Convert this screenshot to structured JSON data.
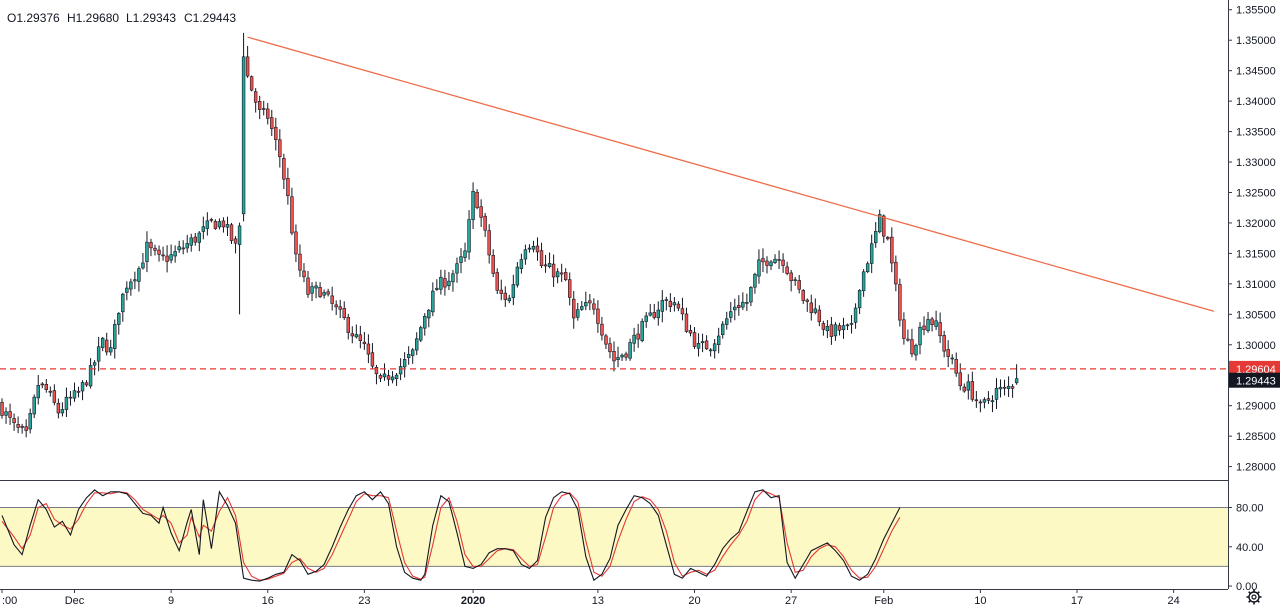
{
  "ohlc_header": {
    "open": "O1.29376",
    "high": "H1.29680",
    "low": "L1.29343",
    "close": "C1.29443"
  },
  "price_axis_labels": [
    "1.35500",
    "1.35000",
    "1.34500",
    "1.34000",
    "1.33500",
    "1.33000",
    "1.32500",
    "1.32000",
    "1.31500",
    "1.31000",
    "1.30500",
    "1.30000",
    "1.29500",
    "1.29000",
    "1.28500",
    "1.28000"
  ],
  "price_axis_values": [
    1.355,
    1.35,
    1.345,
    1.34,
    1.335,
    1.33,
    1.325,
    1.32,
    1.315,
    1.31,
    1.305,
    1.3,
    1.295,
    1.29,
    1.285,
    1.28
  ],
  "price_range": [
    1.2778,
    1.3566
  ],
  "time_axis": [
    {
      "label": ":00",
      "index": 0
    },
    {
      "label": "Dec",
      "index": 18
    },
    {
      "label": "9",
      "index": 42
    },
    {
      "label": "16",
      "index": 66
    },
    {
      "label": "23",
      "index": 90
    },
    {
      "label": "2020",
      "index": 117
    },
    {
      "label": "13",
      "index": 148
    },
    {
      "label": "20",
      "index": 172
    },
    {
      "label": "27",
      "index": 196
    },
    {
      "label": "Feb",
      "index": 219
    },
    {
      "label": "10",
      "index": 243
    },
    {
      "label": "17",
      "index": 267
    },
    {
      "label": "24",
      "index": 291
    }
  ],
  "bar_count_axis": 305,
  "horizontal_level": {
    "value": 1.29604,
    "label": "1.29604",
    "color": "#e53935"
  },
  "last_price": {
    "value": 1.29443,
    "label": "1.29443",
    "color": "#131722"
  },
  "trendline": {
    "from": {
      "index": 61,
      "price": 1.3505
    },
    "to": {
      "index": 301,
      "price": 1.3055
    },
    "color": "#ef6c4a"
  },
  "stoch_axis_labels": [
    "80.00",
    "40.00",
    "0.00"
  ],
  "stoch_axis_values": [
    80,
    40,
    0
  ],
  "stoch_range": [
    -3,
    107
  ],
  "stoch_band": {
    "upper": 80,
    "lower": 20,
    "color": "#fdf9c4"
  },
  "colors": {
    "up": "#26a69a",
    "down": "#ef5350",
    "candle_border": "#131722",
    "k_line": "#131722",
    "d_line": "#e53935",
    "grid_border": "#787b86"
  },
  "settings_icon": "gear-icon",
  "chart_data": {
    "type": "candlestick",
    "title": "",
    "xlabel": "",
    "ylabel": "",
    "close_anchors": [
      [
        0,
        1.2895
      ],
      [
        3,
        1.2865
      ],
      [
        6,
        1.285
      ],
      [
        9,
        1.2935
      ],
      [
        11,
        1.2925
      ],
      [
        14,
        1.289
      ],
      [
        16,
        1.2905
      ],
      [
        19,
        1.292
      ],
      [
        22,
        1.2955
      ],
      [
        25,
        1.3005
      ],
      [
        27,
        1.299
      ],
      [
        29,
        1.306
      ],
      [
        31,
        1.31
      ],
      [
        34,
        1.3125
      ],
      [
        36,
        1.316
      ],
      [
        39,
        1.314
      ],
      [
        42,
        1.3145
      ],
      [
        46,
        1.3165
      ],
      [
        49,
        1.318
      ],
      [
        52,
        1.32
      ],
      [
        55,
        1.32
      ],
      [
        58,
        1.316
      ],
      [
        59,
        1.3195
      ],
      [
        60,
        1.348
      ],
      [
        61,
        1.344
      ],
      [
        64,
        1.338
      ],
      [
        66,
        1.3375
      ],
      [
        69,
        1.331
      ],
      [
        71,
        1.324
      ],
      [
        73,
        1.314
      ],
      [
        76,
        1.3085
      ],
      [
        79,
        1.309
      ],
      [
        82,
        1.3065
      ],
      [
        85,
        1.304
      ],
      [
        88,
        1.301
      ],
      [
        90,
        1.2995
      ],
      [
        92,
        1.296
      ],
      [
        94,
        1.2935
      ],
      [
        96,
        1.295
      ],
      [
        99,
        1.2965
      ],
      [
        102,
        1.2985
      ],
      [
        105,
        1.305
      ],
      [
        108,
        1.3095
      ],
      [
        111,
        1.311
      ],
      [
        113,
        1.3125
      ],
      [
        115,
        1.315
      ],
      [
        117,
        1.3245
      ],
      [
        118,
        1.3235
      ],
      [
        120,
        1.318
      ],
      [
        123,
        1.3085
      ],
      [
        126,
        1.3075
      ],
      [
        128,
        1.313
      ],
      [
        130,
        1.3165
      ],
      [
        132,
        1.317
      ],
      [
        134,
        1.313
      ],
      [
        137,
        1.312
      ],
      [
        140,
        1.3105
      ],
      [
        142,
        1.304
      ],
      [
        144,
        1.306
      ],
      [
        147,
        1.3065
      ],
      [
        150,
        1.3005
      ],
      [
        152,
        1.2975
      ],
      [
        155,
        1.299
      ],
      [
        158,
        1.302
      ],
      [
        161,
        1.3045
      ],
      [
        164,
        1.307
      ],
      [
        167,
        1.307
      ],
      [
        170,
        1.303
      ],
      [
        173,
        1.2995
      ],
      [
        176,
        1.3
      ],
      [
        179,
        1.303
      ],
      [
        182,
        1.3065
      ],
      [
        185,
        1.307
      ],
      [
        188,
        1.313
      ],
      [
        191,
        1.3145
      ],
      [
        194,
        1.314
      ],
      [
        196,
        1.311
      ],
      [
        199,
        1.3075
      ],
      [
        202,
        1.3055
      ],
      [
        205,
        1.302
      ],
      [
        208,
        1.3025
      ],
      [
        211,
        1.3025
      ],
      [
        213,
        1.31
      ],
      [
        216,
        1.316
      ],
      [
        218,
        1.3205
      ],
      [
        220,
        1.317
      ],
      [
        222,
        1.309
      ],
      [
        224,
        1.301
      ],
      [
        226,
        1.2995
      ],
      [
        228,
        1.3025
      ],
      [
        230,
        1.3045
      ],
      [
        232,
        1.303
      ],
      [
        234,
        1.2995
      ],
      [
        236,
        1.297
      ],
      [
        238,
        1.2935
      ],
      [
        240,
        1.293
      ],
      [
        242,
        1.291
      ],
      [
        243,
        1.2895
      ],
      [
        245,
        1.291
      ],
      [
        247,
        1.2925
      ],
      [
        249,
        1.2925
      ],
      [
        251,
        1.2935
      ],
      [
        252,
        1.2944
      ]
    ],
    "last_close": 1.29443,
    "series": [
      {
        "name": "",
        "kind": "line"
      },
      {
        "name": "",
        "kind": "line"
      }
    ],
    "stoch_k_anchors": [
      [
        0,
        72
      ],
      [
        3,
        42
      ],
      [
        5,
        32
      ],
      [
        7,
        62
      ],
      [
        9,
        88
      ],
      [
        11,
        78
      ],
      [
        13,
        60
      ],
      [
        15,
        66
      ],
      [
        17,
        52
      ],
      [
        19,
        78
      ],
      [
        21,
        90
      ],
      [
        23,
        98
      ],
      [
        25,
        92
      ],
      [
        27,
        96
      ],
      [
        29,
        96
      ],
      [
        31,
        94
      ],
      [
        33,
        84
      ],
      [
        35,
        74
      ],
      [
        37,
        72
      ],
      [
        39,
        64
      ],
      [
        40,
        80
      ],
      [
        42,
        54
      ],
      [
        44,
        36
      ],
      [
        46,
        65
      ],
      [
        47,
        78
      ],
      [
        49,
        32
      ],
      [
        50,
        88
      ],
      [
        52,
        38
      ],
      [
        54,
        96
      ],
      [
        56,
        82
      ],
      [
        58,
        64
      ],
      [
        60,
        8
      ],
      [
        62,
        6
      ],
      [
        64,
        5
      ],
      [
        66,
        8
      ],
      [
        68,
        12
      ],
      [
        70,
        14
      ],
      [
        72,
        32
      ],
      [
        74,
        26
      ],
      [
        76,
        12
      ],
      [
        78,
        15
      ],
      [
        80,
        22
      ],
      [
        82,
        40
      ],
      [
        84,
        60
      ],
      [
        86,
        78
      ],
      [
        88,
        92
      ],
      [
        90,
        96
      ],
      [
        92,
        88
      ],
      [
        94,
        96
      ],
      [
        96,
        84
      ],
      [
        98,
        40
      ],
      [
        100,
        14
      ],
      [
        102,
        8
      ],
      [
        104,
        6
      ],
      [
        105,
        12
      ],
      [
        107,
        62
      ],
      [
        109,
        92
      ],
      [
        111,
        86
      ],
      [
        113,
        54
      ],
      [
        115,
        20
      ],
      [
        117,
        18
      ],
      [
        119,
        22
      ],
      [
        121,
        34
      ],
      [
        123,
        38
      ],
      [
        125,
        38
      ],
      [
        127,
        36
      ],
      [
        129,
        22
      ],
      [
        131,
        18
      ],
      [
        133,
        26
      ],
      [
        135,
        70
      ],
      [
        137,
        90
      ],
      [
        139,
        96
      ],
      [
        141,
        94
      ],
      [
        143,
        78
      ],
      [
        145,
        30
      ],
      [
        147,
        6
      ],
      [
        149,
        12
      ],
      [
        151,
        28
      ],
      [
        153,
        62
      ],
      [
        155,
        78
      ],
      [
        157,
        92
      ],
      [
        159,
        90
      ],
      [
        161,
        84
      ],
      [
        163,
        72
      ],
      [
        165,
        42
      ],
      [
        167,
        12
      ],
      [
        169,
        8
      ],
      [
        171,
        18
      ],
      [
        173,
        14
      ],
      [
        175,
        10
      ],
      [
        177,
        22
      ],
      [
        179,
        38
      ],
      [
        181,
        48
      ],
      [
        183,
        55
      ],
      [
        185,
        76
      ],
      [
        187,
        96
      ],
      [
        189,
        98
      ],
      [
        191,
        90
      ],
      [
        193,
        92
      ],
      [
        195,
        24
      ],
      [
        197,
        8
      ],
      [
        199,
        22
      ],
      [
        201,
        36
      ],
      [
        203,
        40
      ],
      [
        205,
        44
      ],
      [
        207,
        36
      ],
      [
        209,
        26
      ],
      [
        211,
        10
      ],
      [
        213,
        6
      ],
      [
        215,
        12
      ],
      [
        217,
        28
      ],
      [
        219,
        48
      ],
      [
        221,
        64
      ],
      [
        223,
        80
      ]
    ],
    "stoch_d_anchors": [
      [
        0,
        66
      ],
      [
        3,
        50
      ],
      [
        5,
        38
      ],
      [
        7,
        52
      ],
      [
        9,
        80
      ],
      [
        11,
        84
      ],
      [
        13,
        68
      ],
      [
        15,
        62
      ],
      [
        17,
        58
      ],
      [
        19,
        68
      ],
      [
        21,
        84
      ],
      [
        23,
        95
      ],
      [
        25,
        95
      ],
      [
        27,
        94
      ],
      [
        29,
        96
      ],
      [
        31,
        95
      ],
      [
        33,
        88
      ],
      [
        35,
        78
      ],
      [
        37,
        73
      ],
      [
        39,
        68
      ],
      [
        40,
        72
      ],
      [
        42,
        64
      ],
      [
        44,
        44
      ],
      [
        46,
        52
      ],
      [
        47,
        70
      ],
      [
        49,
        50
      ],
      [
        50,
        62
      ],
      [
        52,
        56
      ],
      [
        54,
        76
      ],
      [
        56,
        90
      ],
      [
        58,
        72
      ],
      [
        60,
        24
      ],
      [
        62,
        10
      ],
      [
        64,
        6
      ],
      [
        66,
        7
      ],
      [
        68,
        10
      ],
      [
        70,
        13
      ],
      [
        72,
        24
      ],
      [
        74,
        28
      ],
      [
        76,
        18
      ],
      [
        78,
        14
      ],
      [
        80,
        18
      ],
      [
        82,
        32
      ],
      [
        84,
        50
      ],
      [
        86,
        68
      ],
      [
        88,
        86
      ],
      [
        90,
        94
      ],
      [
        92,
        92
      ],
      [
        94,
        92
      ],
      [
        96,
        90
      ],
      [
        98,
        56
      ],
      [
        100,
        24
      ],
      [
        102,
        10
      ],
      [
        104,
        7
      ],
      [
        105,
        9
      ],
      [
        107,
        42
      ],
      [
        109,
        80
      ],
      [
        111,
        90
      ],
      [
        113,
        66
      ],
      [
        115,
        32
      ],
      [
        117,
        20
      ],
      [
        119,
        20
      ],
      [
        121,
        28
      ],
      [
        123,
        36
      ],
      [
        125,
        38
      ],
      [
        127,
        37
      ],
      [
        129,
        28
      ],
      [
        131,
        20
      ],
      [
        133,
        22
      ],
      [
        135,
        50
      ],
      [
        137,
        80
      ],
      [
        139,
        92
      ],
      [
        141,
        95
      ],
      [
        143,
        86
      ],
      [
        145,
        46
      ],
      [
        147,
        14
      ],
      [
        149,
        10
      ],
      [
        151,
        20
      ],
      [
        153,
        46
      ],
      [
        155,
        68
      ],
      [
        157,
        86
      ],
      [
        159,
        91
      ],
      [
        161,
        88
      ],
      [
        163,
        78
      ],
      [
        165,
        56
      ],
      [
        167,
        24
      ],
      [
        169,
        10
      ],
      [
        171,
        14
      ],
      [
        173,
        16
      ],
      [
        175,
        12
      ],
      [
        177,
        16
      ],
      [
        179,
        30
      ],
      [
        181,
        42
      ],
      [
        183,
        52
      ],
      [
        185,
        66
      ],
      [
        187,
        88
      ],
      [
        189,
        97
      ],
      [
        191,
        94
      ],
      [
        193,
        90
      ],
      [
        195,
        44
      ],
      [
        197,
        14
      ],
      [
        199,
        16
      ],
      [
        201,
        30
      ],
      [
        203,
        38
      ],
      [
        205,
        42
      ],
      [
        207,
        40
      ],
      [
        209,
        30
      ],
      [
        211,
        16
      ],
      [
        213,
        8
      ],
      [
        215,
        9
      ],
      [
        217,
        20
      ],
      [
        219,
        38
      ],
      [
        221,
        56
      ],
      [
        223,
        70
      ]
    ]
  }
}
